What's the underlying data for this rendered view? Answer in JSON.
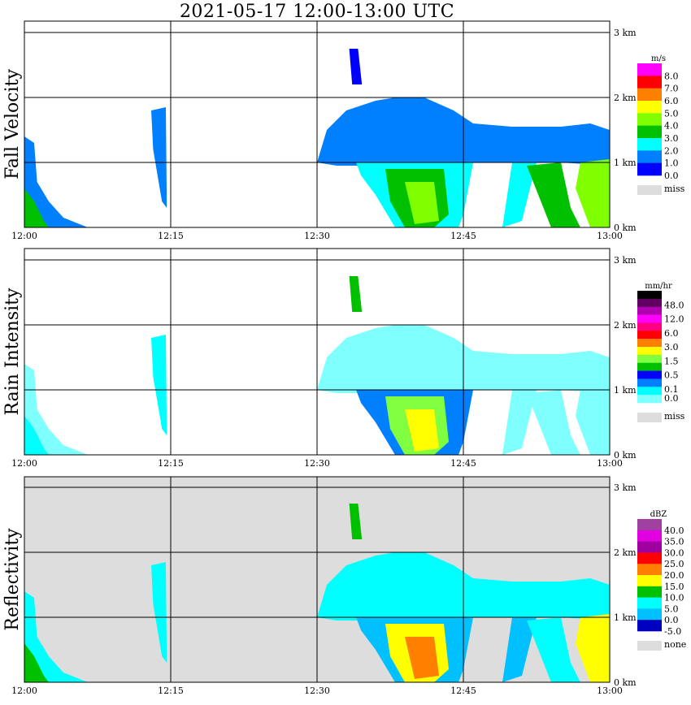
{
  "chart_data": {
    "type": "heatmap",
    "title": "2021-05-17   12:00-13:00 UTC",
    "x_ticks": [
      "12:00",
      "12:15",
      "12:30",
      "12:45",
      "13:00"
    ],
    "xlim_minutes": [
      0,
      60
    ],
    "y_ticks": [
      "0 km",
      "1 km",
      "2 km",
      "3 km"
    ],
    "ylim_km": [
      0,
      3.2
    ],
    "grid": true,
    "panels": [
      {
        "name": "Fall Velocity",
        "units": "m/s",
        "legend_labels": [
          "8.0",
          "7.0",
          "6.0",
          "5.0",
          "4.0",
          "3.0",
          "2.0",
          "1.0",
          "0.0"
        ],
        "legend_colors": [
          "#ff00ff",
          "#ff0000",
          "#ff8000",
          "#ffff00",
          "#80ff00",
          "#00c000",
          "#00ffff",
          "#0080ff",
          "#0000ff"
        ],
        "missing_label": "miss",
        "missing_color": "#dddddd",
        "background": "#ffffff"
      },
      {
        "name": "Rain Intensity",
        "units": "mm/hr",
        "legend_labels": [
          "48.0",
          "12.0",
          "6.0",
          "3.0",
          "1.5",
          "0.5",
          "0.1",
          "0.0"
        ],
        "legend_colors": [
          "#000000",
          "#600060",
          "#b000b0",
          "#ff00ff",
          "#ff0080",
          "#ff0000",
          "#ff8000",
          "#ffff00",
          "#80ff40",
          "#00c000",
          "#0000ff",
          "#0080ff",
          "#00ffff",
          "#80ffff"
        ],
        "missing_label": "miss",
        "missing_color": "#dddddd",
        "background": "#ffffff"
      },
      {
        "name": "Reflectivity",
        "units": "dBZ",
        "legend_labels": [
          "40.0",
          "35.0",
          "30.0",
          "25.0",
          "20.0",
          "15.0",
          "10.0",
          "5.0",
          "0.0",
          "-5.0"
        ],
        "legend_colors": [
          "#a040a0",
          "#e000e0",
          "#a000a0",
          "#ff0000",
          "#ff8000",
          "#ffff00",
          "#00c000",
          "#00ffff",
          "#00c0ff",
          "#0000c0"
        ],
        "missing_label": "none",
        "missing_color": "#dddddd",
        "background": "#dddddd"
      }
    ]
  }
}
